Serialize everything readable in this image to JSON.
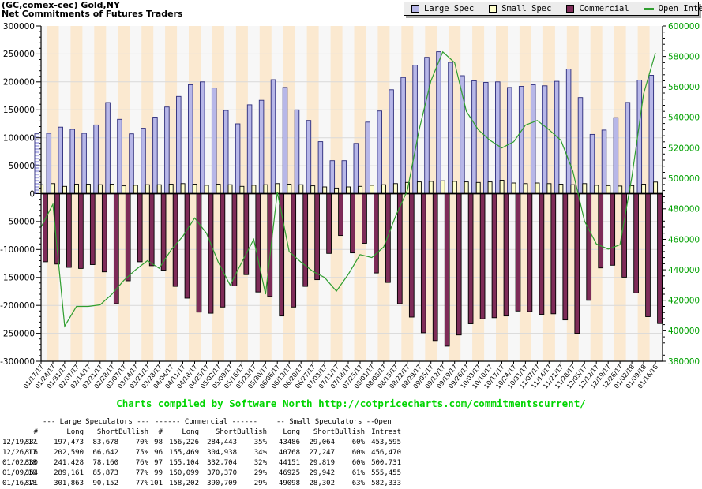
{
  "header": {
    "title_line1": "(GC,comex-cec) Gold,NY",
    "title_line2": "Net Commitments of Futures Traders"
  },
  "legend": {
    "items": [
      {
        "label": "Large Spec",
        "color": "#b7b7e8",
        "type": "box"
      },
      {
        "label": "Small Spec",
        "color": "#ffffcc",
        "type": "box"
      },
      {
        "label": "Commercial",
        "color": "#7e2b58",
        "type": "box"
      },
      {
        "label": "Open Interest",
        "color": "#2f9e2f",
        "type": "line"
      }
    ]
  },
  "footer": {
    "credit": "Charts compiled by Software North  http://cotpricecharts.com/commitmentscurrent/"
  },
  "chart_data": {
    "type": "bar",
    "title": "Net Commitments of Futures Traders",
    "xlabel": "",
    "ylabel": "",
    "grid": true,
    "legend_position": "top-right",
    "left_axis": {
      "min": -300000,
      "max": 300000,
      "major": 50000,
      "minor": 10000
    },
    "right_axis": {
      "min": 380000,
      "max": 600000,
      "major": 20000,
      "minor": 4000
    },
    "style": {
      "plot_bg": "#f7f7f7",
      "band": "#fbe9d0",
      "grid": "#d9d9d9",
      "bar_stroke": "#000000",
      "right_label": "#00a000"
    },
    "categories": [
      "01/17/17",
      "01/24/17",
      "01/31/17",
      "02/07/17",
      "02/14/17",
      "02/21/17",
      "02/28/17",
      "03/07/17",
      "03/14/17",
      "03/21/17",
      "03/28/17",
      "04/04/17",
      "04/11/17",
      "04/18/17",
      "04/25/17",
      "05/02/17",
      "05/09/17",
      "05/16/17",
      "05/23/17",
      "05/30/17",
      "06/06/17",
      "06/13/17",
      "06/20/17",
      "06/27/17",
      "07/03/17",
      "07/11/17",
      "07/18/17",
      "07/25/17",
      "08/01/17",
      "08/08/17",
      "08/15/17",
      "08/22/17",
      "08/29/17",
      "09/05/17",
      "09/12/17",
      "09/19/17",
      "09/26/17",
      "10/03/17",
      "10/10/17",
      "10/17/17",
      "10/24/17",
      "10/31/17",
      "11/07/17",
      "11/14/17",
      "11/21/17",
      "11/28/17",
      "12/05/17",
      "12/12/17",
      "12/19/17",
      "12/26/17",
      "01/02/18",
      "01/09/18",
      "01/16/18"
    ],
    "series": [
      {
        "id": "large-spec",
        "name": "Large Spec",
        "type": "bar",
        "color": "#b7b7e8",
        "stroke": "#2a2a7a",
        "values": [
          107000,
          108000,
          119000,
          115000,
          108000,
          123000,
          163000,
          133000,
          107000,
          117000,
          137000,
          155000,
          174000,
          195000,
          200000,
          189000,
          149000,
          125000,
          159000,
          167000,
          204000,
          190000,
          150000,
          131000,
          93000,
          59000,
          59000,
          90000,
          128000,
          148000,
          186000,
          208000,
          230000,
          244000,
          254000,
          235000,
          211000,
          202000,
          199000,
          200000,
          190000,
          192000,
          195000,
          193000,
          201000,
          223000,
          172000,
          106000,
          113795,
          135948,
          163268,
          203288,
          211711
        ]
      },
      {
        "id": "small-spec",
        "name": "Small Spec",
        "type": "bar",
        "color": "#ffffcc",
        "stroke": "#000000",
        "values": [
          16000,
          18000,
          13000,
          17000,
          17000,
          16000,
          17000,
          14000,
          15000,
          16000,
          16000,
          17000,
          18000,
          17000,
          15000,
          17000,
          16000,
          13000,
          15000,
          16000,
          18000,
          17000,
          16000,
          14000,
          12000,
          10000,
          12000,
          13000,
          15000,
          16000,
          18000,
          20000,
          21000,
          22000,
          23000,
          22000,
          21000,
          20000,
          21000,
          24000,
          19000,
          18000,
          19000,
          18000,
          17000,
          16000,
          18000,
          15000,
          14422,
          13521,
          14332,
          16983,
          20796
        ]
      },
      {
        "id": "commercial",
        "name": "Commercial",
        "type": "bar",
        "color": "#7e2b58",
        "stroke": "#000000",
        "values": [
          -122000,
          -126000,
          -132000,
          -134000,
          -127000,
          -140000,
          -197000,
          -156000,
          -122000,
          -129000,
          -137000,
          -166000,
          -187000,
          -212000,
          -214000,
          -203000,
          -165000,
          -145000,
          -176000,
          -184000,
          -219000,
          -203000,
          -166000,
          -154000,
          -107000,
          -75000,
          -106000,
          -89000,
          -142000,
          -159000,
          -197000,
          -221000,
          -249000,
          -263000,
          -273000,
          -253000,
          -233000,
          -224000,
          -222000,
          -219000,
          -210000,
          -211000,
          -216000,
          -215000,
          -226000,
          -250000,
          -191000,
          -133000,
          -128217,
          -149469,
          -177600,
          -220271,
          -232507
        ]
      },
      {
        "id": "open-interest",
        "name": "Open Interest",
        "type": "line",
        "axis": "right",
        "color": "#2f9e2f",
        "values": [
          468000,
          483000,
          403000,
          416000,
          416000,
          417000,
          424000,
          433000,
          440000,
          446000,
          441000,
          453000,
          462000,
          474000,
          464000,
          445000,
          430000,
          445000,
          460000,
          424000,
          491000,
          452000,
          445000,
          439000,
          435000,
          426000,
          437000,
          450000,
          448000,
          455000,
          475000,
          492000,
          532000,
          564000,
          583000,
          576000,
          544000,
          532000,
          525000,
          520000,
          524000,
          535000,
          538000,
          532000,
          525000,
          505000,
          472000,
          457000,
          453595,
          456470,
          500731,
          555455,
          582333
        ]
      }
    ]
  },
  "table": {
    "group_headers": [
      "--- Large Speculators ---",
      "------ Commercial ------",
      "-- Small Speculators --",
      "Open"
    ],
    "columns": [
      "#",
      "Long",
      "Short",
      "Bullish",
      "#",
      "Long",
      "Short",
      "Bullish",
      "Long",
      "Short",
      "Bullish",
      "Intrest"
    ],
    "rows": [
      [
        "12/19/17",
        "331",
        "197,473",
        "83,678",
        "70%",
        "98",
        "156,226",
        "284,443",
        "35%",
        "43486",
        "29,064",
        "60%",
        "453,595"
      ],
      [
        "12/26/17",
        "316",
        "202,590",
        "66,642",
        "75%",
        "96",
        "155,469",
        "304,938",
        "34%",
        "40768",
        "27,247",
        "60%",
        "456,470"
      ],
      [
        "01/02/18",
        "330",
        "241,428",
        "78,160",
        "76%",
        "97",
        "155,104",
        "332,704",
        "32%",
        "44151",
        "29,819",
        "60%",
        "500,731"
      ],
      [
        "01/09/18",
        "354",
        "289,161",
        "85,873",
        "77%",
        "99",
        "150,099",
        "370,370",
        "29%",
        "46925",
        "29,942",
        "61%",
        "555,455"
      ],
      [
        "01/16/18",
        "371",
        "301,863",
        "90,152",
        "77%",
        "101",
        "158,202",
        "390,709",
        "29%",
        "49098",
        "28,302",
        "63%",
        "582,333"
      ]
    ]
  }
}
